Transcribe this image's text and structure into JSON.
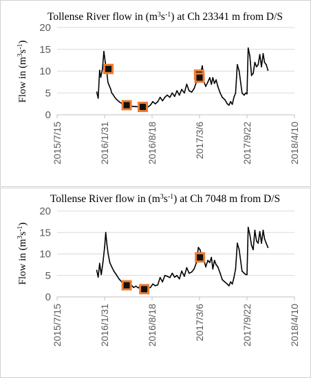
{
  "colors": {
    "line": "#000000",
    "marker_fill": "#111111",
    "marker_border": "#ED7D31",
    "grid": "#d9d9d9",
    "tick_text": "#595959"
  },
  "chart_data": [
    {
      "type": "line",
      "title_pre": "Tollense River flow in (m",
      "title_sup1": "3",
      "title_mid": "s",
      "title_sup2": "-1",
      "title_post": ") at Ch 23341 m from D/S",
      "ylabel_pre": "Flow in (m",
      "ylabel_sup1": "3",
      "ylabel_mid": "s",
      "ylabel_sup2": "-1",
      "ylabel_post": ")",
      "x_axis_type": "date",
      "xlim": [
        "2015-07-15",
        "2018-04-10"
      ],
      "x_ticks": [
        "2015-07-15",
        "2016-01-31",
        "2016-08-18",
        "2017-03-06",
        "2017-09-22",
        "2018-04-10"
      ],
      "x_tick_labels": [
        "2015/7/15",
        "2016/1/31",
        "2016/8/18",
        "2017/3/6",
        "2017/9/22",
        "2018/4/10"
      ],
      "ylim": [
        0,
        20
      ],
      "y_ticks": [
        0,
        5,
        10,
        15,
        20
      ],
      "grid": "horizontal",
      "series": [
        {
          "style": "line",
          "x": [
            "2015-12-29",
            "2016-01-04",
            "2016-01-10",
            "2016-01-15",
            "2016-01-22",
            "2016-01-28",
            "2016-02-03",
            "2016-02-08",
            "2016-02-14",
            "2016-02-17",
            "2016-02-21",
            "2016-02-25",
            "2016-03-01",
            "2016-03-07",
            "2016-03-14",
            "2016-03-22",
            "2016-04-01",
            "2016-04-12",
            "2016-04-22",
            "2016-05-01",
            "2016-05-12",
            "2016-05-22",
            "2016-06-01",
            "2016-06-11",
            "2016-06-21",
            "2016-07-01",
            "2016-07-11",
            "2016-07-21",
            "2016-08-01",
            "2016-08-11",
            "2016-08-21",
            "2016-09-01",
            "2016-09-11",
            "2016-09-21",
            "2016-10-01",
            "2016-10-11",
            "2016-10-21",
            "2016-11-01",
            "2016-11-11",
            "2016-11-21",
            "2016-12-01",
            "2016-12-11",
            "2016-12-21",
            "2017-01-01",
            "2017-01-11",
            "2017-01-21",
            "2017-02-01",
            "2017-02-11",
            "2017-02-21",
            "2017-03-01",
            "2017-03-06",
            "2017-03-12",
            "2017-03-18",
            "2017-03-25",
            "2017-04-01",
            "2017-04-10",
            "2017-04-18",
            "2017-04-25",
            "2017-05-01",
            "2017-05-08",
            "2017-05-15",
            "2017-05-22",
            "2017-06-01",
            "2017-06-10",
            "2017-06-20",
            "2017-07-01",
            "2017-07-08",
            "2017-07-15",
            "2017-07-22",
            "2017-07-29",
            "2017-08-05",
            "2017-08-12",
            "2017-08-20",
            "2017-09-01",
            "2017-09-10",
            "2017-09-17",
            "2017-09-22",
            "2017-09-27",
            "2017-10-04",
            "2017-10-11",
            "2017-10-18",
            "2017-10-25",
            "2017-11-01",
            "2017-11-08",
            "2017-11-15",
            "2017-11-22",
            "2017-11-29",
            "2017-12-05",
            "2017-12-12",
            "2017-12-19"
          ],
          "y": [
            5.2,
            3.8,
            10.2,
            8.6,
            10.5,
            14.5,
            12.0,
            10.5,
            7.5,
            7.0,
            6.5,
            6.0,
            5.0,
            4.6,
            4.0,
            3.5,
            3.0,
            2.6,
            2.3,
            2.2,
            2.0,
            2.0,
            1.9,
            1.9,
            1.8,
            2.0,
            2.2,
            2.0,
            1.8,
            2.2,
            3.0,
            2.5,
            3.0,
            4.0,
            3.2,
            4.0,
            4.5,
            4.0,
            5.0,
            4.2,
            5.5,
            4.5,
            5.8,
            5.0,
            7.0,
            5.5,
            5.2,
            6.0,
            7.5,
            9.5,
            9.0,
            10.0,
            11.2,
            7.5,
            6.5,
            7.5,
            8.5,
            7.0,
            8.5,
            7.2,
            8.0,
            6.5,
            5.0,
            4.0,
            3.5,
            2.5,
            2.2,
            3.0,
            2.4,
            4.0,
            5.0,
            11.5,
            10.0,
            5.0,
            4.5,
            5.0,
            4.8,
            15.3,
            13.5,
            9.0,
            9.5,
            12.0,
            11.0,
            11.5,
            13.8,
            11.0,
            14.0,
            12.0,
            11.5,
            10.2
          ]
        },
        {
          "style": "markers",
          "x": [
            "2016-02-16",
            "2016-05-03",
            "2016-07-10",
            "2017-03-04"
          ],
          "y": [
            10.5,
            2.2,
            1.8,
            9.2
          ]
        },
        {
          "style": "markers",
          "x": [
            "2017-03-06"
          ],
          "y": [
            8.5
          ]
        }
      ]
    },
    {
      "type": "line",
      "title_pre": "Tollense River flow in (m",
      "title_sup1": "3",
      "title_mid": "s",
      "title_sup2": "-1",
      "title_post": ") at Ch 7048 m from D/S",
      "ylabel_pre": "Flow in (m",
      "ylabel_sup1": "3",
      "ylabel_mid": "s",
      "ylabel_sup2": "-1",
      "ylabel_post": ")",
      "x_axis_type": "date",
      "xlim": [
        "2015-07-15",
        "2018-04-10"
      ],
      "x_ticks": [
        "2015-07-15",
        "2016-01-31",
        "2016-08-18",
        "2017-03-06",
        "2017-09-22",
        "2018-04-10"
      ],
      "x_tick_labels": [
        "2015/7/15",
        "2016/1/31",
        "2016/8/18",
        "2017/3/6",
        "2017/9/22",
        "2018/4/10"
      ],
      "ylim": [
        0,
        20
      ],
      "y_ticks": [
        0,
        5,
        10,
        15,
        20
      ],
      "grid": "horizontal",
      "series": [
        {
          "style": "line",
          "x": [
            "2015-12-29",
            "2016-01-04",
            "2016-01-10",
            "2016-01-17",
            "2016-01-24",
            "2016-01-31",
            "2016-02-05",
            "2016-02-10",
            "2016-02-15",
            "2016-02-22",
            "2016-03-01",
            "2016-03-10",
            "2016-03-20",
            "2016-04-01",
            "2016-04-12",
            "2016-04-22",
            "2016-05-01",
            "2016-05-12",
            "2016-05-22",
            "2016-06-01",
            "2016-06-11",
            "2016-06-21",
            "2016-07-01",
            "2016-07-11",
            "2016-07-21",
            "2016-08-01",
            "2016-08-11",
            "2016-08-21",
            "2016-09-01",
            "2016-09-11",
            "2016-09-21",
            "2016-10-01",
            "2016-10-11",
            "2016-10-21",
            "2016-11-01",
            "2016-11-11",
            "2016-11-21",
            "2016-12-01",
            "2016-12-11",
            "2016-12-21",
            "2017-01-01",
            "2017-01-11",
            "2017-01-21",
            "2017-02-01",
            "2017-02-11",
            "2017-02-21",
            "2017-03-01",
            "2017-03-08",
            "2017-03-15",
            "2017-03-22",
            "2017-04-01",
            "2017-04-10",
            "2017-04-18",
            "2017-04-25",
            "2017-05-01",
            "2017-05-08",
            "2017-05-15",
            "2017-05-22",
            "2017-06-01",
            "2017-06-10",
            "2017-06-20",
            "2017-07-01",
            "2017-07-08",
            "2017-07-15",
            "2017-07-22",
            "2017-07-29",
            "2017-08-05",
            "2017-08-12",
            "2017-08-20",
            "2017-09-01",
            "2017-09-10",
            "2017-09-17",
            "2017-09-22",
            "2017-09-27",
            "2017-10-04",
            "2017-10-11",
            "2017-10-18",
            "2017-10-25",
            "2017-11-01",
            "2017-11-08",
            "2017-11-15",
            "2017-11-22",
            "2017-11-29",
            "2017-12-05",
            "2017-12-12",
            "2017-12-19"
          ],
          "y": [
            6.2,
            4.6,
            7.8,
            5.2,
            8.0,
            11.5,
            15.0,
            12.2,
            10.0,
            8.0,
            7.0,
            6.0,
            5.2,
            4.2,
            3.5,
            3.0,
            2.7,
            2.4,
            2.8,
            2.2,
            2.5,
            2.1,
            2.6,
            2.2,
            2.4,
            2.0,
            2.2,
            3.0,
            2.6,
            2.8,
            4.5,
            3.5,
            5.0,
            4.8,
            4.5,
            5.5,
            4.6,
            5.0,
            4.2,
            6.0,
            4.8,
            6.8,
            5.5,
            5.8,
            6.5,
            8.0,
            11.5,
            11.0,
            9.5,
            9.2,
            7.0,
            8.5,
            8.0,
            9.2,
            6.5,
            8.5,
            7.5,
            7.0,
            5.5,
            4.0,
            3.5,
            3.0,
            2.6,
            3.5,
            3.0,
            4.5,
            6.5,
            12.5,
            11.0,
            6.0,
            5.5,
            5.2,
            5.2,
            16.2,
            14.5,
            12.0,
            11.0,
            15.5,
            13.0,
            12.5,
            15.2,
            12.5,
            15.5,
            13.5,
            12.5,
            11.5
          ]
        },
        {
          "style": "markers",
          "x": [
            "2016-05-03",
            "2016-07-16",
            "2017-03-08"
          ],
          "y": [
            2.7,
            1.8,
            9.2
          ]
        }
      ]
    }
  ]
}
